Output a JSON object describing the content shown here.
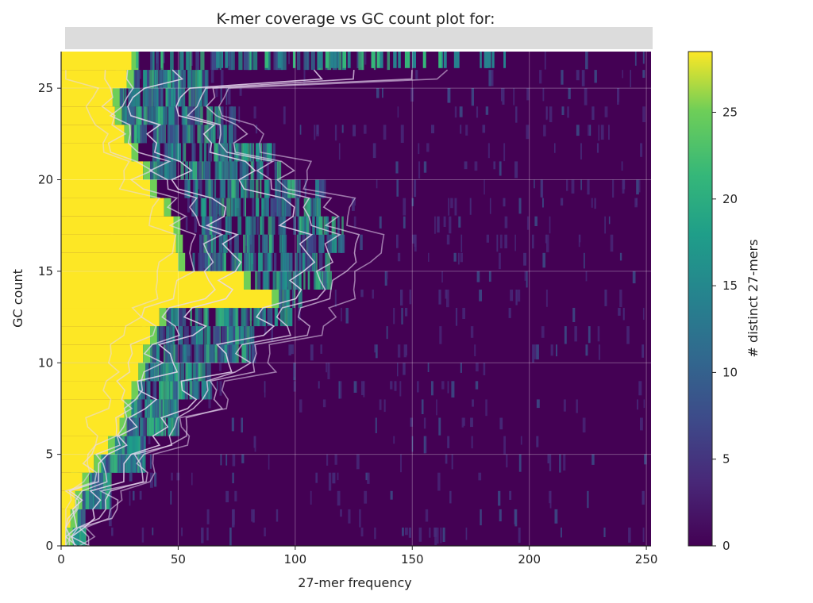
{
  "chart_data": {
    "type": "heatmap",
    "title": "K-mer coverage vs GC count plot for:",
    "subtitle": "",
    "xlabel": "27-mer frequency",
    "ylabel": "GC count",
    "xlim": [
      0,
      252
    ],
    "ylim": [
      0,
      27
    ],
    "x_ticks": [
      0,
      50,
      100,
      150,
      200,
      250
    ],
    "y_ticks": [
      0,
      5,
      10,
      15,
      20,
      25
    ],
    "grid": true,
    "colormap": "viridis",
    "colorbar": {
      "label": "# distinct 27-mers",
      "range": [
        0,
        28.5
      ],
      "ticks": [
        0,
        5,
        10,
        15,
        20,
        25
      ]
    },
    "overlay": "kernel density contour lines (white)",
    "saturated_region_by_gc": [
      {
        "gc": 0,
        "x_max": 2
      },
      {
        "gc": 1,
        "x_max": 4
      },
      {
        "gc": 2,
        "x_max": 6
      },
      {
        "gc": 3,
        "x_max": 9
      },
      {
        "gc": 4,
        "x_max": 14
      },
      {
        "gc": 5,
        "x_max": 20
      },
      {
        "gc": 6,
        "x_max": 25
      },
      {
        "gc": 7,
        "x_max": 27
      },
      {
        "gc": 8,
        "x_max": 30
      },
      {
        "gc": 9,
        "x_max": 33
      },
      {
        "gc": 10,
        "x_max": 35
      },
      {
        "gc": 11,
        "x_max": 38
      },
      {
        "gc": 12,
        "x_max": 42
      },
      {
        "gc": 13,
        "x_max": 90
      },
      {
        "gc": 14,
        "x_max": 78
      },
      {
        "gc": 15,
        "x_max": 50
      },
      {
        "gc": 16,
        "x_max": 49
      },
      {
        "gc": 17,
        "x_max": 48
      },
      {
        "gc": 18,
        "x_max": 44
      },
      {
        "gc": 19,
        "x_max": 38
      },
      {
        "gc": 20,
        "x_max": 35
      },
      {
        "gc": 21,
        "x_max": 30
      },
      {
        "gc": 22,
        "x_max": 27
      },
      {
        "gc": 23,
        "x_max": 23
      },
      {
        "gc": 24,
        "x_max": 22
      },
      {
        "gc": 25,
        "x_max": 28
      },
      {
        "gc": 26,
        "x_max": 30
      }
    ],
    "density_ridge_by_gc": [
      {
        "gc": 0,
        "x": 5,
        "width": 4
      },
      {
        "gc": 2,
        "x": 12,
        "width": 8
      },
      {
        "gc": 4,
        "x": 25,
        "width": 10
      },
      {
        "gc": 6,
        "x": 35,
        "width": 14
      },
      {
        "gc": 8,
        "x": 45,
        "width": 18
      },
      {
        "gc": 10,
        "x": 58,
        "width": 24
      },
      {
        "gc": 12,
        "x": 72,
        "width": 30
      },
      {
        "gc": 14,
        "x": 85,
        "width": 30
      },
      {
        "gc": 16,
        "x": 90,
        "width": 32
      },
      {
        "gc": 18,
        "x": 82,
        "width": 30
      },
      {
        "gc": 20,
        "x": 65,
        "width": 28
      },
      {
        "gc": 22,
        "x": 50,
        "width": 24
      },
      {
        "gc": 24,
        "x": 42,
        "width": 20
      },
      {
        "gc": 26,
        "x": 80,
        "width": 60
      }
    ]
  }
}
